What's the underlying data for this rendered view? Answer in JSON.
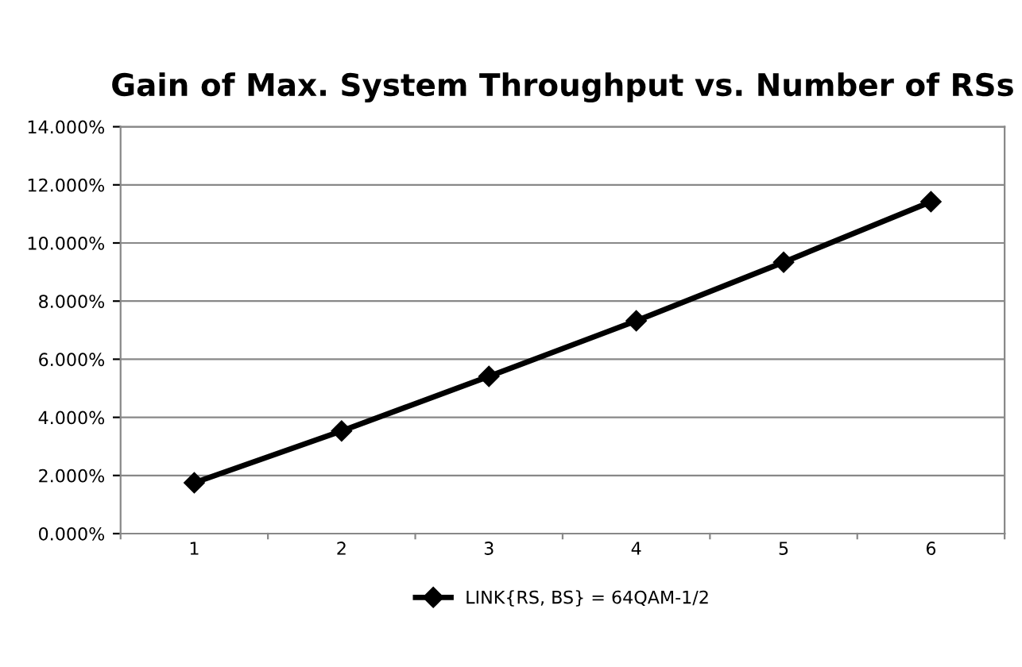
{
  "chart_data": {
    "type": "line",
    "title": "Gain of Max. System Throughput vs. Number of RSs",
    "categories": [
      "1",
      "2",
      "3",
      "4",
      "5",
      "6"
    ],
    "series": [
      {
        "name": "LINK{RS, BS} = 64QAM-1/2",
        "color": "#000000",
        "values": [
          1.75,
          3.53,
          5.41,
          7.32,
          9.34,
          11.42
        ]
      }
    ],
    "ylim": [
      0,
      14
    ],
    "yticks": [
      {
        "value": 0,
        "label": "0.000%"
      },
      {
        "value": 2,
        "label": "2.000%"
      },
      {
        "value": 4,
        "label": "4.000%"
      },
      {
        "value": 6,
        "label": "6.000%"
      },
      {
        "value": 8,
        "label": "8.000%"
      },
      {
        "value": 10,
        "label": "10.000%"
      },
      {
        "value": 12,
        "label": "12.000%"
      },
      {
        "value": 14,
        "label": "14.000%"
      }
    ],
    "grid": "y",
    "legend": "bottom",
    "marker": "diamond",
    "line_style": "solid"
  }
}
